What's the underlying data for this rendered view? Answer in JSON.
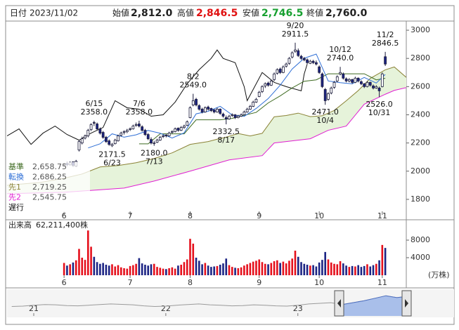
{
  "header": {
    "date_label": "日付",
    "date": "2023/11/02",
    "open_label": "始値",
    "open": "2,812.0",
    "high_label": "高値",
    "high": "2,846.5",
    "low_label": "安値",
    "low": "2,746.5",
    "close_label": "終値",
    "close": "2,760.0"
  },
  "chart_data": [
    {
      "type": "candlestick",
      "xlim": [
        -19,
        114
      ],
      "xticks": [
        {
          "value": 0,
          "label": "6"
        },
        {
          "value": 22,
          "label": "7"
        },
        {
          "value": 42,
          "label": "8"
        },
        {
          "value": 65,
          "label": "9"
        },
        {
          "value": 85,
          "label": "10"
        },
        {
          "value": 106,
          "label": "11"
        }
      ],
      "ylim": [
        1720,
        3060
      ],
      "yticks": [
        1800,
        2000,
        2200,
        2400,
        2600,
        2800,
        3000
      ],
      "up_color": "#ffffff",
      "down_color": "#1c2484",
      "edge_color": "#1a1a3a",
      "cloud_color": "#e6f3da",
      "open": [
        2040,
        2055,
        2045,
        2065,
        2035,
        2150,
        2200,
        2235,
        2250,
        2295,
        2345,
        2335,
        2300,
        2275,
        2240,
        2215,
        2180,
        2195,
        2215,
        2255,
        2275,
        2280,
        2295,
        2300,
        2325,
        2335,
        2315,
        2290,
        2260,
        2225,
        2195,
        2205,
        2220,
        2245,
        2255,
        2250,
        2275,
        2280,
        2305,
        2290,
        2310,
        2325,
        2380,
        2470,
        2510,
        2465,
        2440,
        2420,
        2455,
        2445,
        2435,
        2420,
        2440,
        2405,
        2380,
        2370,
        2395,
        2400,
        2380,
        2390,
        2400,
        2420,
        2440,
        2460,
        2490,
        2530,
        2565,
        2605,
        2625,
        2610,
        2650,
        2695,
        2725,
        2700,
        2745,
        2765,
        2810,
        2850,
        2855,
        2815,
        2800,
        2790,
        2765,
        2780,
        2770,
        2740,
        2690,
        2580,
        2510,
        2555,
        2595,
        2640,
        2690,
        2690,
        2655,
        2640,
        2650,
        2630,
        2660,
        2635,
        2620,
        2600,
        2630,
        2605,
        2590,
        2590,
        2600,
        2812
      ],
      "high": [
        2060,
        2065,
        2070,
        2070,
        2080,
        2220,
        2245,
        2260,
        2300,
        2340,
        2358,
        2345,
        2310,
        2285,
        2250,
        2225,
        2200,
        2230,
        2260,
        2280,
        2290,
        2300,
        2310,
        2330,
        2345,
        2358,
        2325,
        2300,
        2270,
        2240,
        2215,
        2230,
        2250,
        2260,
        2265,
        2280,
        2290,
        2310,
        2310,
        2320,
        2330,
        2360,
        2460,
        2549,
        2520,
        2475,
        2450,
        2460,
        2465,
        2450,
        2440,
        2450,
        2445,
        2415,
        2395,
        2400,
        2410,
        2405,
        2400,
        2410,
        2430,
        2450,
        2470,
        2500,
        2520,
        2570,
        2610,
        2630,
        2635,
        2650,
        2700,
        2730,
        2735,
        2750,
        2770,
        2810,
        2850,
        2911.5,
        2870,
        2825,
        2810,
        2800,
        2790,
        2790,
        2785,
        2750,
        2700,
        2590,
        2560,
        2600,
        2640,
        2680,
        2740,
        2700,
        2665,
        2660,
        2655,
        2670,
        2665,
        2645,
        2625,
        2640,
        2635,
        2615,
        2610,
        2600,
        2700,
        2846.5
      ],
      "low": [
        2030,
        2035,
        2040,
        2030,
        2030,
        2140,
        2190,
        2225,
        2240,
        2285,
        2320,
        2290,
        2260,
        2230,
        2200,
        2180,
        2171.5,
        2190,
        2210,
        2245,
        2260,
        2270,
        2285,
        2295,
        2315,
        2310,
        2280,
        2250,
        2220,
        2190,
        2180,
        2200,
        2215,
        2235,
        2240,
        2245,
        2265,
        2275,
        2280,
        2285,
        2300,
        2320,
        2375,
        2460,
        2460,
        2430,
        2410,
        2415,
        2430,
        2420,
        2410,
        2415,
        2400,
        2380,
        2332.5,
        2365,
        2385,
        2370,
        2375,
        2385,
        2395,
        2415,
        2435,
        2455,
        2485,
        2525,
        2555,
        2590,
        2600,
        2605,
        2640,
        2685,
        2690,
        2695,
        2735,
        2755,
        2800,
        2840,
        2810,
        2790,
        2780,
        2760,
        2760,
        2760,
        2750,
        2690,
        2590,
        2471,
        2500,
        2545,
        2585,
        2630,
        2680,
        2650,
        2630,
        2630,
        2620,
        2625,
        2630,
        2610,
        2590,
        2595,
        2600,
        2580,
        2585,
        2526,
        2595,
        2746.5
      ],
      "close": [
        2050,
        2045,
        2060,
        2040,
        2070,
        2210,
        2230,
        2250,
        2290,
        2330,
        2340,
        2300,
        2270,
        2240,
        2210,
        2190,
        2190,
        2220,
        2250,
        2270,
        2280,
        2290,
        2300,
        2320,
        2330,
        2320,
        2290,
        2260,
        2230,
        2200,
        2200,
        2220,
        2240,
        2250,
        2250,
        2270,
        2280,
        2300,
        2290,
        2310,
        2320,
        2350,
        2450,
        2500,
        2470,
        2440,
        2420,
        2450,
        2440,
        2430,
        2420,
        2440,
        2410,
        2390,
        2370,
        2390,
        2400,
        2380,
        2390,
        2400,
        2420,
        2440,
        2460,
        2490,
        2510,
        2560,
        2600,
        2620,
        2610,
        2640,
        2690,
        2720,
        2700,
        2740,
        2760,
        2800,
        2840,
        2860,
        2820,
        2800,
        2790,
        2770,
        2780,
        2770,
        2760,
        2700,
        2600,
        2500,
        2550,
        2590,
        2630,
        2670,
        2700,
        2660,
        2640,
        2650,
        2630,
        2660,
        2640,
        2620,
        2600,
        2630,
        2610,
        2590,
        2600,
        2570,
        2690,
        2760
      ],
      "series": [
        {
          "name": "基準",
          "value_label": "2,658.75",
          "color": "#3f6b22",
          "x": [
            25,
            28,
            32,
            36,
            40,
            44,
            48,
            52,
            56,
            60,
            64,
            68,
            72,
            76,
            80,
            84,
            88,
            92,
            96,
            100,
            104,
            107
          ],
          "values": [
            2194,
            2194,
            2265,
            2265,
            2265,
            2364.5,
            2364.5,
            2364.5,
            2374.5,
            2397,
            2417,
            2484,
            2534,
            2591,
            2638,
            2648,
            2691,
            2691,
            2691,
            2691,
            2648,
            2658.75
          ]
        },
        {
          "name": "転換",
          "value_label": "2,686.25",
          "color": "#2f6fd6",
          "x": [
            8,
            12,
            16,
            20,
            24,
            28,
            32,
            36,
            40,
            44,
            48,
            52,
            56,
            60,
            64,
            68,
            72,
            76,
            80,
            84,
            88,
            92,
            96,
            100,
            104,
            107
          ],
          "values": [
            2165,
            2194,
            2265,
            2241,
            2258,
            2289,
            2269,
            2235,
            2272,
            2407,
            2425,
            2460,
            2399,
            2389,
            2445,
            2515,
            2610,
            2725,
            2801,
            2831,
            2640,
            2628,
            2620,
            2665,
            2625,
            2686.25
          ]
        },
        {
          "name": "先1",
          "value_label": "2,719.25",
          "color": "#8a8236",
          "x": [
            -19,
            -8,
            0,
            6,
            12,
            18,
            24,
            30,
            36,
            42,
            48,
            51,
            54,
            58,
            62,
            66,
            70,
            74,
            78,
            82,
            86,
            90,
            94,
            98,
            102,
            107,
            110,
            114
          ],
          "values": [
            1900,
            1920,
            1950,
            1980,
            2030,
            2040,
            2060,
            2090,
            2130,
            2190,
            2210,
            2227,
            2241.5,
            2267,
            2250,
            2268.5,
            2385.75,
            2394.75,
            2412,
            2387,
            2393,
            2431,
            2499.5,
            2572,
            2658,
            2719.25,
            2739.5,
            2665.5
          ]
        },
        {
          "name": "先2",
          "value_label": "2,545.75",
          "color": "#e01fd2",
          "x": [
            -19,
            0,
            20,
            30,
            42,
            55,
            66,
            70,
            82,
            88,
            94,
            100,
            107,
            110,
            114
          ],
          "values": [
            1840,
            1850,
            1880,
            1930,
            2000,
            2080,
            2110,
            2200,
            2230,
            2290,
            2320,
            2475,
            2545.75,
            2573,
            2593
          ]
        },
        {
          "name": "遅行",
          "color": "#111111",
          "x": [
            -19,
            -15,
            -11,
            -7,
            -3,
            1,
            5,
            9,
            13,
            17,
            21,
            25,
            29,
            33,
            37,
            41,
            45,
            49,
            51,
            53,
            57,
            60,
            61,
            66,
            70,
            74,
            79,
            80,
            81
          ],
          "values": [
            2250,
            2300,
            2190,
            2270,
            2320,
            2260,
            2220,
            2270,
            2310,
            2500,
            2450,
            2440,
            2390,
            2400,
            2490,
            2620,
            2720,
            2800,
            2860,
            2800,
            2770,
            2600,
            2500,
            2700,
            2630,
            2600,
            2570,
            2690,
            2760
          ]
        }
      ],
      "annotations": [
        {
          "x": 10,
          "value": 2358,
          "label": "2358.0",
          "date": "6/15"
        },
        {
          "x": 16,
          "value": 2171.5,
          "label": "2171.5",
          "date": "6/23"
        },
        {
          "x": 25,
          "value": 2358,
          "label": "2358.0",
          "date": "7/6"
        },
        {
          "x": 30,
          "value": 2180,
          "label": "2180.0",
          "date": "7/13"
        },
        {
          "x": 43,
          "value": 2549,
          "label": "2549.0",
          "date": "8/2"
        },
        {
          "x": 54,
          "value": 2332.5,
          "label": "2332.5",
          "date": "8/17"
        },
        {
          "x": 77,
          "value": 2911.5,
          "label": "2911.5",
          "date": "9/20"
        },
        {
          "x": 87,
          "value": 2471,
          "label": "2471.0",
          "date": "10/4"
        },
        {
          "x": 92,
          "value": 2740,
          "label": "2740.0",
          "date": "10/12"
        },
        {
          "x": 105,
          "value": 2526,
          "label": "2526.0",
          "date": "10/31"
        },
        {
          "x": 107,
          "value": 2846.5,
          "label": "2846.5",
          "date": "11/2"
        }
      ]
    },
    {
      "type": "bar",
      "title": "出来高",
      "total_label": "62,211,400株",
      "unit_label": "(万株)",
      "xlim": [
        -19,
        114
      ],
      "xticks": [
        {
          "value": 0,
          "label": "6"
        },
        {
          "value": 22,
          "label": "7"
        },
        {
          "value": 42,
          "label": "8"
        },
        {
          "value": 65,
          "label": "9"
        },
        {
          "value": 85,
          "label": "10"
        },
        {
          "value": 106,
          "label": "11"
        }
      ],
      "ylim": [
        0,
        12640
      ],
      "yticks": [
        4000,
        8000
      ],
      "up_color": "#e5101c",
      "down_color": "#1c2484",
      "values": [
        2800,
        2200,
        2500,
        2900,
        3400,
        6000,
        4000,
        3500,
        10200,
        6500,
        4200,
        3000,
        2600,
        2800,
        2400,
        2200,
        2500,
        2000,
        2300,
        1800,
        1600,
        1500,
        2100,
        2300,
        2600,
        3900,
        2700,
        2400,
        2200,
        2500,
        2600,
        1900,
        1700,
        1500,
        1400,
        1600,
        1800,
        1500,
        2200,
        2400,
        3000,
        3600,
        8300,
        7200,
        4000,
        3300,
        2500,
        2800,
        2200,
        1900,
        2000,
        2100,
        2400,
        2700,
        3800,
        2300,
        1900,
        1700,
        1600,
        1800,
        2200,
        2500,
        2800,
        3100,
        3300,
        3600,
        3000,
        2600,
        2500,
        2800,
        3200,
        3400,
        2800,
        3100,
        2700,
        3300,
        3800,
        5600,
        4200,
        3000,
        2600,
        2400,
        2200,
        2300,
        2000,
        2900,
        3500,
        5300,
        3600,
        2900,
        2600,
        2500,
        3200,
        2700,
        2200,
        1900,
        2100,
        2000,
        2300,
        1900,
        2100,
        2500,
        2000,
        2300,
        2600,
        3400,
        6900,
        6221
      ]
    },
    {
      "type": "area",
      "xlim": [
        -0.3,
        36.3
      ],
      "xticks": [
        {
          "value": 2,
          "label": "21"
        },
        {
          "value": 14,
          "label": "22"
        },
        {
          "value": 26,
          "label": "23"
        }
      ],
      "ylim": [
        1200,
        3200
      ],
      "color": "#9a9a9a",
      "fill_color": "#a9bfea",
      "line_color": "#4d6fc0",
      "values": [
        1950,
        1980,
        2050,
        2100,
        2080,
        2020,
        2000,
        2050,
        2100,
        2150,
        2120,
        2080,
        2000,
        1950,
        1980,
        2050,
        2100,
        2150,
        2080,
        2050,
        2000,
        2020,
        2080,
        2050,
        2000,
        1980,
        2050,
        2150,
        2200,
        2250,
        2100,
        2250,
        2400,
        2600,
        2800,
        2650,
        2760
      ]
    }
  ]
}
